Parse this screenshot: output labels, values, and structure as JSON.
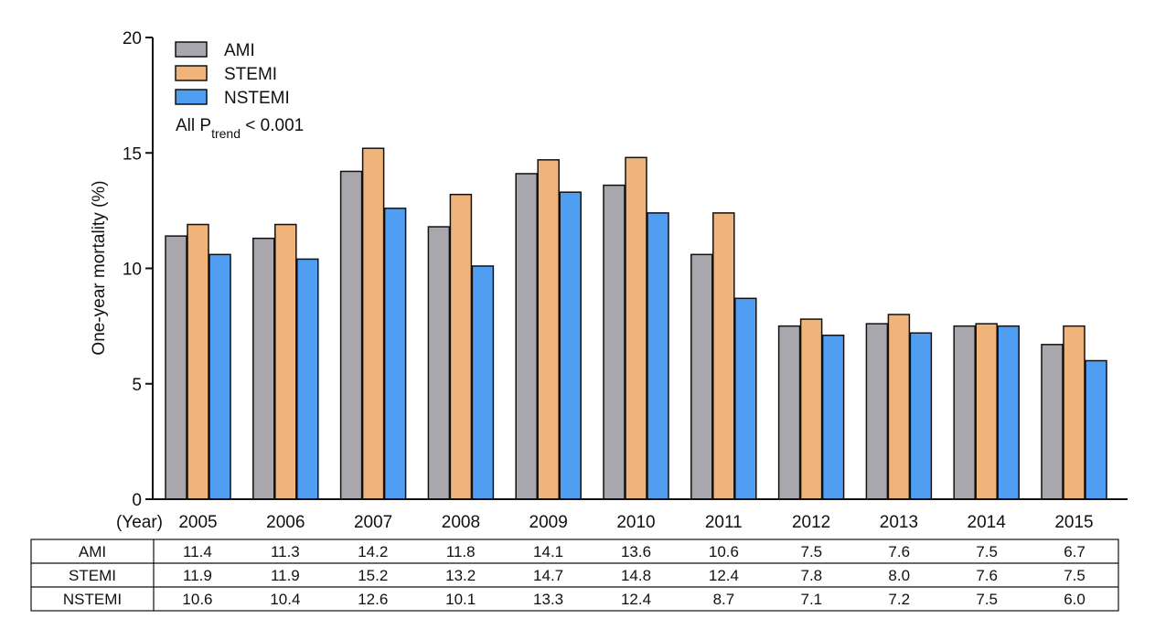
{
  "chart_data": {
    "type": "bar",
    "ylabel": "One-year mortality (%)",
    "x_axis_prefix": "(Year)",
    "ylim": [
      0,
      20
    ],
    "yticks": [
      0,
      5,
      10,
      15,
      20
    ],
    "categories": [
      "2005",
      "2006",
      "2007",
      "2008",
      "2009",
      "2010",
      "2011",
      "2012",
      "2013",
      "2014",
      "2015"
    ],
    "series": [
      {
        "name": "AMI",
        "color": "#a7a7ad",
        "values": [
          11.4,
          11.3,
          14.2,
          11.8,
          14.1,
          13.6,
          10.6,
          7.5,
          7.6,
          7.5,
          6.7
        ]
      },
      {
        "name": "STEMI",
        "color": "#f0b47a",
        "values": [
          11.9,
          11.9,
          15.2,
          13.2,
          14.7,
          14.8,
          12.4,
          7.8,
          8.0,
          7.6,
          7.5
        ]
      },
      {
        "name": "NSTEMI",
        "color": "#4f9ef2",
        "values": [
          10.6,
          10.4,
          12.6,
          10.1,
          13.3,
          12.4,
          8.7,
          7.1,
          7.2,
          7.5,
          6.0
        ]
      }
    ],
    "legend_position": "top-left",
    "annotation": {
      "prefix": "All P",
      "subscript": "trend",
      "suffix": " < 0.001"
    },
    "table": {
      "rows": [
        {
          "label": "AMI",
          "values": [
            "11.4",
            "11.3",
            "14.2",
            "11.8",
            "14.1",
            "13.6",
            "10.6",
            "7.5",
            "7.6",
            "7.5",
            "6.7"
          ]
        },
        {
          "label": "STEMI",
          "values": [
            "11.9",
            "11.9",
            "15.2",
            "13.2",
            "14.7",
            "14.8",
            "12.4",
            "7.8",
            "8.0",
            "7.6",
            "7.5"
          ]
        },
        {
          "label": "NSTEMI",
          "values": [
            "10.6",
            "10.4",
            "12.6",
            "10.1",
            "13.3",
            "12.4",
            "8.7",
            "7.1",
            "7.2",
            "7.5",
            "6.0"
          ]
        }
      ]
    }
  }
}
